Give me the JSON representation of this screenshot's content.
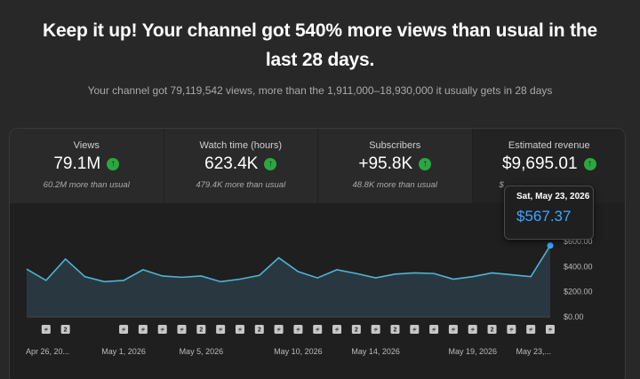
{
  "header": {
    "title": "Keep it up! Your channel got 540% more views than usual in the last 28 days.",
    "subtitle": "Your channel got 79,119,542 views, more than the 1,911,000–18,930,000 it usually gets in 28 days"
  },
  "metrics": [
    {
      "label": "Views",
      "value": "79.1M",
      "sub": "60.2M more than usual"
    },
    {
      "label": "Watch time (hours)",
      "value": "623.4K",
      "sub": "479.4K more than usual"
    },
    {
      "label": "Subscribers",
      "value": "+95.8K",
      "sub": "48.8K more than usual"
    },
    {
      "label": "Estimated revenue",
      "value": "$9,695.01",
      "sub": "$"
    }
  ],
  "tooltip": {
    "date": "Sat, May 23, 2026",
    "value": "$567.37"
  },
  "colors": {
    "line": "#3ea6ff",
    "up": "#2ba640",
    "series_line": "#4fb4d6"
  },
  "chart_data": {
    "type": "area",
    "x": [
      "Apr 26",
      "Apr 27",
      "Apr 28",
      "Apr 29",
      "Apr 30",
      "May 1",
      "May 2",
      "May 3",
      "May 4",
      "May 5",
      "May 6",
      "May 7",
      "May 8",
      "May 9",
      "May 10",
      "May 11",
      "May 12",
      "May 13",
      "May 14",
      "May 15",
      "May 16",
      "May 17",
      "May 18",
      "May 19",
      "May 20",
      "May 21",
      "May 22",
      "May 23"
    ],
    "values": [
      380,
      290,
      460,
      320,
      280,
      290,
      375,
      325,
      315,
      325,
      280,
      300,
      330,
      470,
      360,
      310,
      375,
      345,
      310,
      340,
      350,
      345,
      300,
      320,
      350,
      335,
      320,
      567.37
    ],
    "ylim": [
      0,
      600
    ],
    "yticks": [
      "$600.00",
      "$400.00",
      "$200.00",
      "$0.00"
    ],
    "ytick_values": [
      600,
      400,
      200,
      0
    ],
    "xtick_labels": [
      {
        "index": 0,
        "label": "Apr 26, 20..."
      },
      {
        "index": 5,
        "label": "May 1, 2026"
      },
      {
        "index": 9,
        "label": "May 5, 2026"
      },
      {
        "index": 14,
        "label": "May 10, 2026"
      },
      {
        "index": 18,
        "label": "May 14, 2026"
      },
      {
        "index": 23,
        "label": "May 19, 2026"
      },
      {
        "index": 27,
        "label": "May 23,..."
      }
    ],
    "annotations": [
      {
        "index": 1,
        "kind": "shorts"
      },
      {
        "index": 2,
        "kind": "count",
        "label": "2"
      },
      {
        "index": 5,
        "kind": "shorts"
      },
      {
        "index": 6,
        "kind": "shorts"
      },
      {
        "index": 7,
        "kind": "shorts"
      },
      {
        "index": 8,
        "kind": "shorts"
      },
      {
        "index": 9,
        "kind": "count",
        "label": "2"
      },
      {
        "index": 10,
        "kind": "shorts"
      },
      {
        "index": 11,
        "kind": "shorts"
      },
      {
        "index": 12,
        "kind": "count",
        "label": "2"
      },
      {
        "index": 13,
        "kind": "shorts"
      },
      {
        "index": 14,
        "kind": "shorts"
      },
      {
        "index": 15,
        "kind": "shorts"
      },
      {
        "index": 16,
        "kind": "shorts"
      },
      {
        "index": 17,
        "kind": "count",
        "label": "2"
      },
      {
        "index": 18,
        "kind": "shorts"
      },
      {
        "index": 19,
        "kind": "count",
        "label": "2"
      },
      {
        "index": 20,
        "kind": "shorts"
      },
      {
        "index": 21,
        "kind": "shorts"
      },
      {
        "index": 22,
        "kind": "shorts"
      },
      {
        "index": 23,
        "kind": "shorts"
      },
      {
        "index": 24,
        "kind": "count",
        "label": "2"
      },
      {
        "index": 25,
        "kind": "shorts"
      },
      {
        "index": 26,
        "kind": "shorts"
      },
      {
        "index": 27,
        "kind": "shorts"
      }
    ],
    "grid": false,
    "legend": "none"
  }
}
